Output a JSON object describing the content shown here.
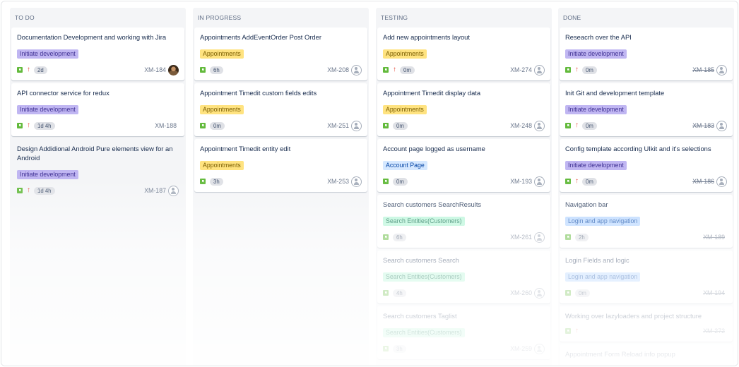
{
  "colors": {
    "initiate": {
      "bg": "#c0b6f2",
      "fg": "#403294"
    },
    "appointments": {
      "bg": "#ffe380",
      "fg": "#7a5d00"
    },
    "account": {
      "bg": "#d5e8ff",
      "fg": "#0747a6"
    },
    "search": {
      "bg": "#b3f5d6",
      "fg": "#006644"
    },
    "login": {
      "bg": "#b3d4ff",
      "fg": "#0747a6"
    }
  },
  "columns": [
    {
      "title": "TO DO",
      "cards": [
        {
          "title": "Documentation Development and working with Jira",
          "label": "Initiate development",
          "label_type": "initiate",
          "priority": true,
          "estimate": "2d",
          "key": "XM-184",
          "avatar": "photo",
          "done": false
        },
        {
          "title": "API connector service for redux",
          "label": "Initiate development",
          "label_type": "initiate",
          "priority": true,
          "estimate": "1d 4h",
          "key": "XM-188",
          "avatar": "none",
          "done": false
        },
        {
          "title": "Design Addidional Android Pure elements view for an Android",
          "label": "Initiate development",
          "label_type": "initiate",
          "priority": true,
          "estimate": "1d 4h",
          "key": "XM-187",
          "avatar": "empty",
          "done": false,
          "faded": true
        }
      ]
    },
    {
      "title": "IN PROGRESS",
      "cards": [
        {
          "title": "Appointments AddEventOrder Post Order",
          "label": "Appointments",
          "label_type": "appointments",
          "priority": false,
          "estimate": "6h",
          "key": "XM-208",
          "avatar": "empty",
          "done": false
        },
        {
          "title": "Appointment Timedit custom fields edits",
          "label": "Appointments",
          "label_type": "appointments",
          "priority": false,
          "estimate": "0m",
          "key": "XM-251",
          "avatar": "empty",
          "done": false
        },
        {
          "title": "Appointment Timedit entity edit",
          "label": "Appointments",
          "label_type": "appointments",
          "priority": false,
          "estimate": "3h",
          "key": "XM-253",
          "avatar": "empty",
          "done": false
        }
      ]
    },
    {
      "title": "TESTING",
      "cards": [
        {
          "title": "Add new appointments layout",
          "label": "Appointments",
          "label_type": "appointments",
          "priority": true,
          "estimate": "0m",
          "key": "XM-274",
          "avatar": "empty",
          "done": false
        },
        {
          "title": "Appointment Timedit display data",
          "label": "Appointments",
          "label_type": "appointments",
          "priority": false,
          "estimate": "0m",
          "key": "XM-248",
          "avatar": "empty",
          "done": false
        },
        {
          "title": "Account page logged as username",
          "label": "Account Page",
          "label_type": "account",
          "priority": false,
          "estimate": "0m",
          "key": "XM-193",
          "avatar": "empty",
          "done": false
        },
        {
          "title": "Search customers SearchResults",
          "label": "Search Entities(Customers)",
          "label_type": "search",
          "priority": false,
          "estimate": "6h",
          "key": "XM-261",
          "avatar": "empty",
          "done": false
        },
        {
          "title": "Search customers Search",
          "label": "Search Entities(Customers)",
          "label_type": "search",
          "priority": false,
          "estimate": "4h",
          "key": "XM-260",
          "avatar": "empty",
          "done": false
        },
        {
          "title": "Search customers Taglist",
          "label": "Search Entities(Customers)",
          "label_type": "search",
          "priority": false,
          "estimate": "3h",
          "key": "XM-259",
          "avatar": "empty",
          "done": false
        }
      ]
    },
    {
      "title": "DONE",
      "cards": [
        {
          "title": "Reseacrh over the API",
          "label": "Initiate development",
          "label_type": "initiate",
          "priority": true,
          "estimate": "0m",
          "key": "XM-185",
          "avatar": "empty",
          "done": true
        },
        {
          "title": "Init Git and development template",
          "label": "Initiate development",
          "label_type": "initiate",
          "priority": true,
          "estimate": "0m",
          "key": "XM-183",
          "avatar": "empty",
          "done": true
        },
        {
          "title": "Config template according UIkit and it's selections",
          "label": "Initiate development",
          "label_type": "initiate",
          "priority": true,
          "estimate": "0m",
          "key": "XM-186",
          "avatar": "empty",
          "done": true
        },
        {
          "title": "Navigation bar",
          "label": "Login and app navigation",
          "label_type": "login",
          "priority": false,
          "estimate": "2h",
          "key": "XM-189",
          "avatar": "none",
          "done": true
        },
        {
          "title": "Login Fields and logic",
          "label": "Login and app navigation",
          "label_type": "login",
          "priority": false,
          "estimate": "0m",
          "key": "XM-194",
          "avatar": "none",
          "done": true
        },
        {
          "title": "Working over lazyloaders and project structure",
          "label": "",
          "label_type": "",
          "priority": true,
          "estimate": "",
          "key": "XM-272",
          "avatar": "none",
          "done": true,
          "no_label": true
        },
        {
          "title": "Appointment Form Reload info popup",
          "label": "",
          "label_type": "",
          "priority": false,
          "estimate": "",
          "key": "",
          "avatar": "none",
          "done": true,
          "no_label": true
        }
      ]
    }
  ]
}
